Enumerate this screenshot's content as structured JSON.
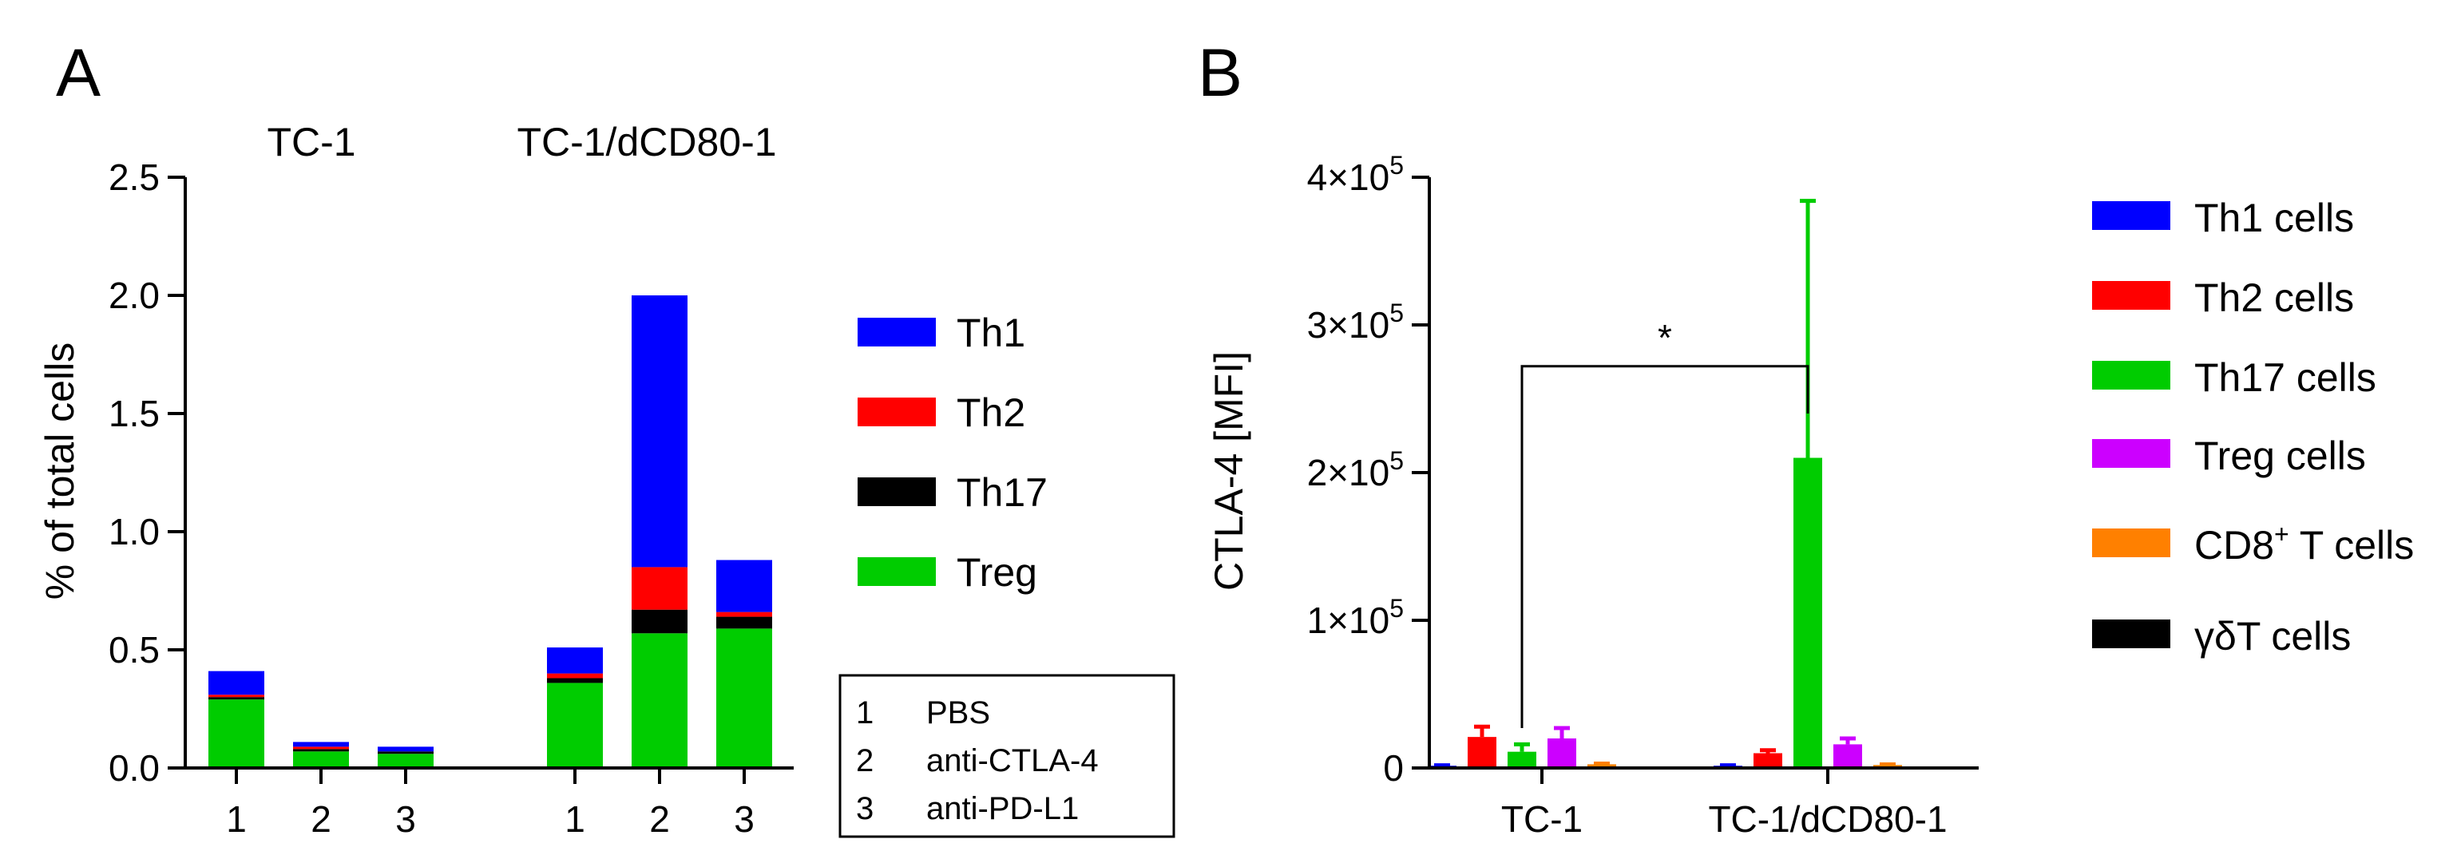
{
  "chart_data": [
    {
      "panel": "A",
      "type": "bar",
      "stacked": true,
      "ylabel": "% of total cells",
      "ylim": [
        0,
        2.5
      ],
      "yticks": [
        "0.0",
        "0.5",
        "1.0",
        "1.5",
        "2.0",
        "2.5"
      ],
      "groups": [
        {
          "title": "TC-1",
          "categories": [
            "1",
            "2",
            "3"
          ]
        },
        {
          "title": "TC-1/dCD80-1",
          "categories": [
            "1",
            "2",
            "3"
          ]
        }
      ],
      "series": [
        {
          "name": "Treg",
          "color": "#00cc00",
          "values": [
            0.29,
            0.07,
            0.06,
            0.36,
            0.57,
            0.59
          ]
        },
        {
          "name": "Th17",
          "color": "#000000",
          "values": [
            0.01,
            0.01,
            0.01,
            0.02,
            0.1,
            0.05
          ]
        },
        {
          "name": "Th2",
          "color": "#ff0000",
          "values": [
            0.01,
            0.01,
            0.0,
            0.02,
            0.18,
            0.02
          ]
        },
        {
          "name": "Th1",
          "color": "#0000ff",
          "values": [
            0.1,
            0.02,
            0.02,
            0.11,
            1.15,
            0.22
          ]
        }
      ],
      "legend": [
        "Th1",
        "Th2",
        "Th17",
        "Treg"
      ],
      "treatment_key": [
        {
          "num": "1",
          "label": "PBS"
        },
        {
          "num": "2",
          "label": "anti-CTLA-4"
        },
        {
          "num": "3",
          "label": "anti-PD-L1"
        }
      ]
    },
    {
      "panel": "B",
      "type": "bar",
      "ylabel": "CTLA-4 [MFI]",
      "ylim": [
        0,
        400000
      ],
      "yticks": [
        {
          "base": "0",
          "exp": ""
        },
        {
          "base": "1×10",
          "exp": "5"
        },
        {
          "base": "2×10",
          "exp": "5"
        },
        {
          "base": "3×10",
          "exp": "5"
        },
        {
          "base": "4×10",
          "exp": "5"
        }
      ],
      "categories": [
        "TC-1",
        "TC-1/dCD80-1"
      ],
      "series": [
        {
          "name": "Th1 cells",
          "color": "#0000ff",
          "values": [
            1500,
            1500
          ],
          "errors": [
            300,
            300
          ]
        },
        {
          "name": "Th2 cells",
          "color": "#ff0000",
          "values": [
            21000,
            10000
          ],
          "errors": [
            7000,
            2000
          ]
        },
        {
          "name": "Th17 cells",
          "color": "#00cc00",
          "values": [
            11000,
            210000
          ],
          "errors": [
            5000,
            174000
          ]
        },
        {
          "name": "Treg cells",
          "color": "#cc00ff",
          "values": [
            20000,
            16000
          ],
          "errors": [
            7000,
            4000
          ]
        },
        {
          "name": "CD8+ T cells",
          "color": "#ff8000",
          "values": [
            2500,
            2000
          ],
          "errors": [
            500,
            400
          ]
        },
        {
          "name": "γδT cells",
          "color": "#000000",
          "values": [
            0,
            0
          ],
          "errors": [
            0,
            0
          ]
        }
      ],
      "legend": [
        {
          "pre": "Th1 cells",
          "sup": "",
          "post": ""
        },
        {
          "pre": "Th2 cells",
          "sup": "",
          "post": ""
        },
        {
          "pre": "Th17 cells",
          "sup": "",
          "post": ""
        },
        {
          "pre": "Treg cells",
          "sup": "",
          "post": ""
        },
        {
          "pre": "CD8",
          "sup": "+",
          "post": " T cells"
        },
        {
          "pre": "γδT cells",
          "sup": "",
          "post": ""
        }
      ],
      "significance": {
        "label": "*",
        "from": "Th17 cells / TC-1",
        "to": "Th17 cells / TC-1/dCD80-1"
      }
    }
  ]
}
